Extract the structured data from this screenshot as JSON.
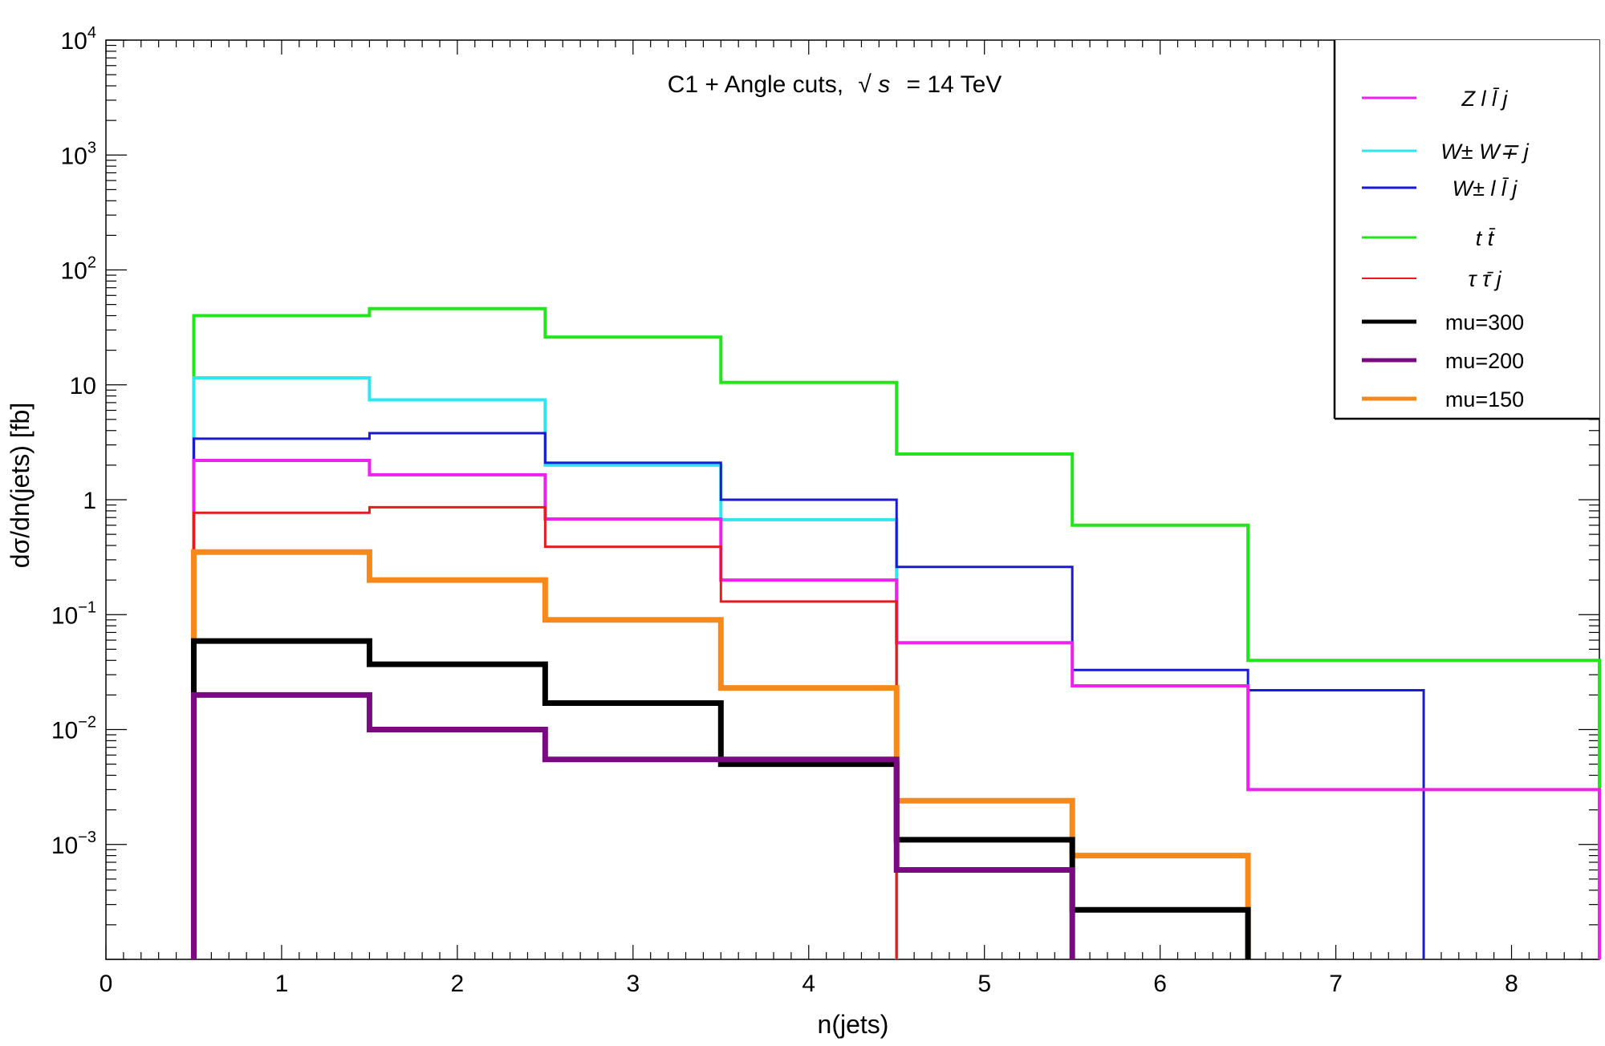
{
  "chart_data": {
    "type": "step-histogram",
    "title_prefix": "C1 + Angle cuts,",
    "title_sqrt": "√",
    "title_s": "s",
    "title_suffix": "= 14 TeV",
    "xlabel": "n(jets)",
    "ylabel": "dσ/dn(jets) [fb]",
    "xlim": [
      0,
      8.5
    ],
    "ylim": [
      0.0001,
      10000
    ],
    "yscale": "log",
    "x_ticks": [
      "0",
      "1",
      "2",
      "3",
      "4",
      "5",
      "6",
      "7",
      "8"
    ],
    "y_ticks": [
      {
        "value": 0.001,
        "base": "10",
        "exp": "−3"
      },
      {
        "value": 0.01,
        "base": "10",
        "exp": "−2"
      },
      {
        "value": 0.1,
        "base": "10",
        "exp": "−1"
      },
      {
        "value": 1,
        "base": "1",
        "exp": ""
      },
      {
        "value": 10,
        "base": "10",
        "exp": ""
      },
      {
        "value": 100,
        "base": "10",
        "exp": "2"
      },
      {
        "value": 1000,
        "base": "10",
        "exp": "3"
      },
      {
        "value": 10000,
        "base": "10",
        "exp": "4"
      }
    ],
    "bin_edges": [
      0.5,
      1.5,
      2.5,
      3.5,
      4.5,
      5.5,
      6.5,
      7.5,
      8.5
    ],
    "series": [
      {
        "name": "t t̄",
        "color": "#22e61c",
        "width": 4,
        "values": [
          40,
          46,
          26,
          10.5,
          2.5,
          0.6,
          0.04,
          0.04
        ]
      },
      {
        "name": "W± W∓ j",
        "color": "#2de6ee",
        "width": 4,
        "values": [
          11.5,
          7.4,
          2.0,
          0.67
        ]
      },
      {
        "name": "W± l l̄ j",
        "color": "#1a1ad2",
        "width": 3,
        "values": [
          3.4,
          3.8,
          2.1,
          1.0,
          0.26,
          0.033,
          0.022
        ]
      },
      {
        "name": "Z l l̄ j",
        "color": "#ee22ee",
        "width": 4,
        "values": [
          2.2,
          1.65,
          0.68,
          0.2,
          0.057,
          0.024,
          0.003,
          0.003
        ]
      },
      {
        "name": "τ τ̄ j",
        "color": "#e51c1c",
        "width": 3,
        "values": [
          0.77,
          0.86,
          0.39,
          0.13
        ]
      },
      {
        "name": "mu=150",
        "color": "#f7891b",
        "width": 7,
        "values": [
          0.35,
          0.2,
          0.09,
          0.023,
          0.0024,
          0.0008
        ]
      },
      {
        "name": "mu=300",
        "color": "#000000",
        "width": 7,
        "values": [
          0.059,
          0.037,
          0.017,
          0.005,
          0.0011,
          0.00027
        ]
      },
      {
        "name": "mu=200",
        "color": "#7a0a82",
        "width": 7,
        "values": [
          0.02,
          0.01,
          0.0055,
          0.0055,
          0.0006
        ]
      }
    ],
    "legend": [
      {
        "label_main": "Z l l",
        "label_bar": "̄",
        "label_post": " j",
        "text": "Z l l̄ j",
        "color": "#ee22ee",
        "width": 3,
        "italic": true
      },
      {
        "label_main": "W",
        "text": "W± W∓ j",
        "color": "#2de6ee",
        "width": 3,
        "italic": true
      },
      {
        "label_main": "W",
        "text": "W± l l̄ j",
        "color": "#1a1ad2",
        "width": 3,
        "italic": true
      },
      {
        "label_main": "t t",
        "text": "t t̄",
        "color": "#22e61c",
        "width": 3,
        "italic": true
      },
      {
        "label_main": "τ τ",
        "text": "τ τ̄ j",
        "color": "#e51c1c",
        "width": 2,
        "italic": true
      },
      {
        "text": "mu=300",
        "color": "#000000",
        "width": 5,
        "italic": false
      },
      {
        "text": "mu=200",
        "color": "#7a0a82",
        "width": 5,
        "italic": false
      },
      {
        "text": "mu=150",
        "color": "#f7891b",
        "width": 5,
        "italic": false
      }
    ],
    "legend_position": "top-right"
  }
}
